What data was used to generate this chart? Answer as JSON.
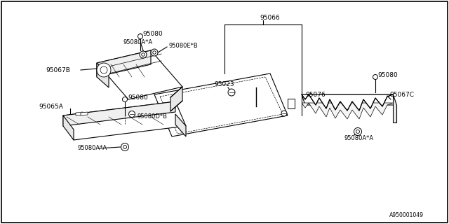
{
  "background_color": "#ffffff",
  "border_color": "#000000",
  "diagram_id": "A950001049",
  "line_color": "#000000",
  "lw": 0.8,
  "fs": 6.5,
  "labels": {
    "95080_top": "95080",
    "95067B": "95067B",
    "95080E_B": "95080E*B",
    "95080A_A_top": "95080A*A",
    "95066": "95066",
    "95023": "95023",
    "95076": "95076",
    "95065A": "95065A",
    "95080_mid": "95080",
    "95080D_B": "95080D*B",
    "95080A_A_bot": "95080A*A",
    "95080_right": "95080",
    "95067C": "95067C",
    "95080A_A_right": "95080A*A",
    "diagram_id": "A950001049"
  }
}
